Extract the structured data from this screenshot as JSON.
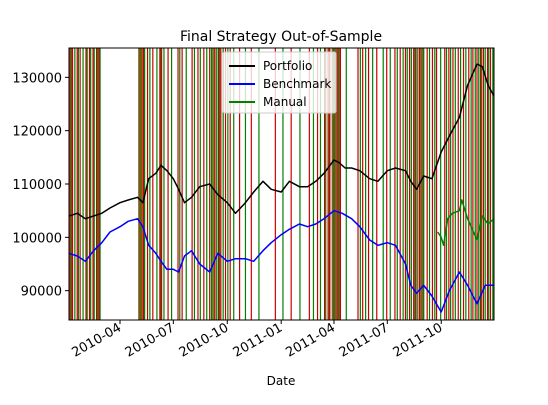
{
  "chart_data": {
    "type": "line",
    "title": "Final Strategy Out-of-Sample",
    "xlabel": "Date",
    "ylabel": "",
    "xlim": [
      "2010-01-04",
      "2011-12-30"
    ],
    "ylim": [
      84500,
      135500
    ],
    "x_ticks": [
      "2010-04-01",
      "2010-07-01",
      "2010-10-01",
      "2011-01-01",
      "2011-04-01",
      "2011-07-01",
      "2011-10-01"
    ],
    "x_tick_labels": [
      "2010-04",
      "2010-07",
      "2010-10",
      "2011-01",
      "2011-04",
      "2011-07",
      "2011-10"
    ],
    "y_ticks": [
      90000,
      100000,
      110000,
      120000,
      130000
    ],
    "y_tick_labels": [
      "90000",
      "100000",
      "110000",
      "120000",
      "130000"
    ],
    "grid": false,
    "legend": {
      "position": "top-center",
      "entries": [
        "Portfolio",
        "Benchmark",
        "Manual"
      ]
    },
    "colors": {
      "Portfolio": "#000000",
      "Benchmark": "#0000ff",
      "Manual": "#008000",
      "long_entry": "#008000",
      "short_entry": "#cc0000"
    },
    "series": [
      {
        "name": "Portfolio",
        "points": [
          [
            "2010-01-04",
            104000
          ],
          [
            "2010-01-18",
            104500
          ],
          [
            "2010-02-01",
            103500
          ],
          [
            "2010-02-15",
            104000
          ],
          [
            "2010-03-01",
            104500
          ],
          [
            "2010-03-15",
            105500
          ],
          [
            "2010-04-01",
            106500
          ],
          [
            "2010-04-15",
            107000
          ],
          [
            "2010-05-01",
            107500
          ],
          [
            "2010-05-10",
            106500
          ],
          [
            "2010-05-20",
            111000
          ],
          [
            "2010-06-01",
            112000
          ],
          [
            "2010-06-10",
            113500
          ],
          [
            "2010-06-20",
            112500
          ],
          [
            "2010-07-01",
            111000
          ],
          [
            "2010-07-10",
            109000
          ],
          [
            "2010-07-20",
            106500
          ],
          [
            "2010-08-01",
            107500
          ],
          [
            "2010-08-15",
            109500
          ],
          [
            "2010-09-01",
            110000
          ],
          [
            "2010-09-15",
            108000
          ],
          [
            "2010-10-01",
            106500
          ],
          [
            "2010-10-15",
            104500
          ],
          [
            "2010-11-01",
            106500
          ],
          [
            "2010-11-15",
            108500
          ],
          [
            "2010-12-01",
            110500
          ],
          [
            "2010-12-15",
            109000
          ],
          [
            "2011-01-01",
            108500
          ],
          [
            "2011-01-15",
            110500
          ],
          [
            "2011-02-01",
            109500
          ],
          [
            "2011-02-15",
            109500
          ],
          [
            "2011-03-01",
            110500
          ],
          [
            "2011-03-15",
            112000
          ],
          [
            "2011-04-01",
            114500
          ],
          [
            "2011-04-10",
            114000
          ],
          [
            "2011-04-20",
            113000
          ],
          [
            "2011-05-01",
            113000
          ],
          [
            "2011-05-15",
            112500
          ],
          [
            "2011-06-01",
            111000
          ],
          [
            "2011-06-15",
            110500
          ],
          [
            "2011-07-01",
            112500
          ],
          [
            "2011-07-15",
            113000
          ],
          [
            "2011-08-01",
            112500
          ],
          [
            "2011-08-10",
            110500
          ],
          [
            "2011-08-20",
            109000
          ],
          [
            "2011-09-01",
            111500
          ],
          [
            "2011-09-15",
            111000
          ],
          [
            "2011-10-01",
            116000
          ],
          [
            "2011-10-15",
            119000
          ],
          [
            "2011-11-01",
            122500
          ],
          [
            "2011-11-15",
            128500
          ],
          [
            "2011-12-01",
            132500
          ],
          [
            "2011-12-10",
            132000
          ],
          [
            "2011-12-20",
            128500
          ],
          [
            "2011-12-30",
            126500
          ]
        ]
      },
      {
        "name": "Benchmark",
        "points": [
          [
            "2010-01-04",
            97000
          ],
          [
            "2010-01-18",
            96500
          ],
          [
            "2010-02-01",
            95500
          ],
          [
            "2010-02-15",
            97500
          ],
          [
            "2010-03-01",
            99000
          ],
          [
            "2010-03-15",
            101000
          ],
          [
            "2010-04-01",
            102000
          ],
          [
            "2010-04-15",
            103000
          ],
          [
            "2010-05-01",
            103500
          ],
          [
            "2010-05-10",
            102000
          ],
          [
            "2010-05-20",
            98500
          ],
          [
            "2010-06-01",
            97000
          ],
          [
            "2010-06-10",
            95500
          ],
          [
            "2010-06-20",
            94000
          ],
          [
            "2010-07-01",
            94000
          ],
          [
            "2010-07-10",
            93500
          ],
          [
            "2010-07-20",
            96500
          ],
          [
            "2010-08-01",
            97500
          ],
          [
            "2010-08-15",
            95000
          ],
          [
            "2010-09-01",
            93500
          ],
          [
            "2010-09-15",
            97000
          ],
          [
            "2010-10-01",
            95500
          ],
          [
            "2010-10-15",
            96000
          ],
          [
            "2010-11-01",
            96000
          ],
          [
            "2010-11-15",
            95500
          ],
          [
            "2010-12-01",
            97500
          ],
          [
            "2010-12-15",
            99000
          ],
          [
            "2011-01-01",
            100500
          ],
          [
            "2011-01-15",
            101500
          ],
          [
            "2011-02-01",
            102500
          ],
          [
            "2011-02-15",
            102000
          ],
          [
            "2011-03-01",
            102500
          ],
          [
            "2011-03-15",
            103500
          ],
          [
            "2011-04-01",
            105000
          ],
          [
            "2011-04-15",
            104500
          ],
          [
            "2011-05-01",
            103500
          ],
          [
            "2011-05-15",
            102000
          ],
          [
            "2011-06-01",
            99500
          ],
          [
            "2011-06-15",
            98500
          ],
          [
            "2011-07-01",
            99000
          ],
          [
            "2011-07-15",
            98500
          ],
          [
            "2011-08-01",
            95000
          ],
          [
            "2011-08-10",
            91000
          ],
          [
            "2011-08-20",
            89500
          ],
          [
            "2011-09-01",
            91000
          ],
          [
            "2011-09-15",
            89000
          ],
          [
            "2011-10-01",
            86000
          ],
          [
            "2011-10-15",
            90000
          ],
          [
            "2011-11-01",
            93500
          ],
          [
            "2011-11-15",
            91000
          ],
          [
            "2011-12-01",
            87500
          ],
          [
            "2011-12-15",
            91000
          ],
          [
            "2011-12-30",
            91000
          ]
        ]
      },
      {
        "name": "Manual",
        "points": [
          [
            "2011-09-25",
            101000
          ],
          [
            "2011-10-01",
            100000
          ],
          [
            "2011-10-05",
            98500
          ],
          [
            "2011-10-12",
            103500
          ],
          [
            "2011-10-20",
            104500
          ],
          [
            "2011-11-01",
            105000
          ],
          [
            "2011-11-05",
            107000
          ],
          [
            "2011-11-15",
            103500
          ],
          [
            "2011-11-25",
            101000
          ],
          [
            "2011-12-01",
            99500
          ],
          [
            "2011-12-10",
            104000
          ],
          [
            "2011-12-20",
            102500
          ],
          [
            "2011-12-30",
            103500
          ]
        ]
      }
    ],
    "vertical_markers": {
      "short_entry": [
        "2010-01-06",
        "2010-01-10",
        "2010-01-18",
        "2010-01-23",
        "2010-02-02",
        "2010-02-08",
        "2010-02-14",
        "2010-02-20",
        "2010-02-24",
        "2010-05-11",
        "2010-05-18",
        "2010-05-27",
        "2010-06-08",
        "2010-06-11",
        "2010-06-22",
        "2010-07-09",
        "2010-07-16",
        "2010-08-02",
        "2010-08-12",
        "2010-08-22",
        "2010-09-01",
        "2010-09-10",
        "2010-09-16",
        "2010-09-20",
        "2010-09-28",
        "2010-10-06",
        "2010-10-22",
        "2010-11-11",
        "2010-12-22",
        "2011-01-18",
        "2011-02-18",
        "2011-03-04",
        "2011-03-16",
        "2011-03-22",
        "2011-03-25",
        "2011-04-08",
        "2011-04-12",
        "2011-05-12",
        "2011-05-20",
        "2011-05-30",
        "2011-06-13",
        "2011-06-30",
        "2011-07-14",
        "2011-07-23",
        "2011-08-01",
        "2011-08-08",
        "2011-08-15",
        "2011-08-19",
        "2011-08-25",
        "2011-09-07",
        "2011-09-16",
        "2011-09-23",
        "2011-10-07",
        "2011-10-14",
        "2011-10-21",
        "2011-10-30",
        "2011-11-08",
        "2011-11-17",
        "2011-11-24",
        "2011-12-01",
        "2011-12-07",
        "2011-12-12",
        "2011-12-19",
        "2011-12-24"
      ],
      "long_entry": [
        "2010-01-08",
        "2010-01-14",
        "2010-01-20",
        "2010-01-28",
        "2010-02-04",
        "2010-02-10",
        "2010-02-16",
        "2010-02-22",
        "2010-02-26",
        "2010-05-13",
        "2010-05-22",
        "2010-06-03",
        "2010-06-09",
        "2010-06-15",
        "2010-06-28",
        "2010-07-12",
        "2010-07-23",
        "2010-08-06",
        "2010-08-16",
        "2010-08-27",
        "2010-09-04",
        "2010-09-13",
        "2010-09-18",
        "2010-09-24",
        "2010-10-02",
        "2010-10-12",
        "2010-11-01",
        "2010-11-24",
        "2011-01-04",
        "2011-02-02",
        "2011-02-25",
        "2011-03-09",
        "2011-03-18",
        "2011-03-24",
        "2011-04-01",
        "2011-04-10",
        "2011-04-22",
        "2011-05-16",
        "2011-05-25",
        "2011-06-06",
        "2011-06-24",
        "2011-07-06",
        "2011-07-18",
        "2011-07-28",
        "2011-08-04",
        "2011-08-11",
        "2011-08-17",
        "2011-08-22",
        "2011-09-01",
        "2011-09-11",
        "2011-09-20",
        "2011-09-30",
        "2011-10-10",
        "2011-10-17",
        "2011-10-25",
        "2011-11-03",
        "2011-11-12",
        "2011-11-21",
        "2011-11-28",
        "2011-12-04",
        "2011-12-09",
        "2011-12-15",
        "2011-12-21",
        "2011-12-28"
      ],
      "short_entry_spans": [
        [
          "2010-05-02",
          "2010-05-10"
        ],
        [
          "2011-03-28",
          "2011-04-07"
        ],
        [
          "2011-08-26",
          "2011-09-02"
        ]
      ],
      "long_entry_spans": [
        [
          "2010-09-05",
          "2010-09-10"
        ],
        [
          "2010-05-04",
          "2010-05-08"
        ]
      ]
    }
  }
}
